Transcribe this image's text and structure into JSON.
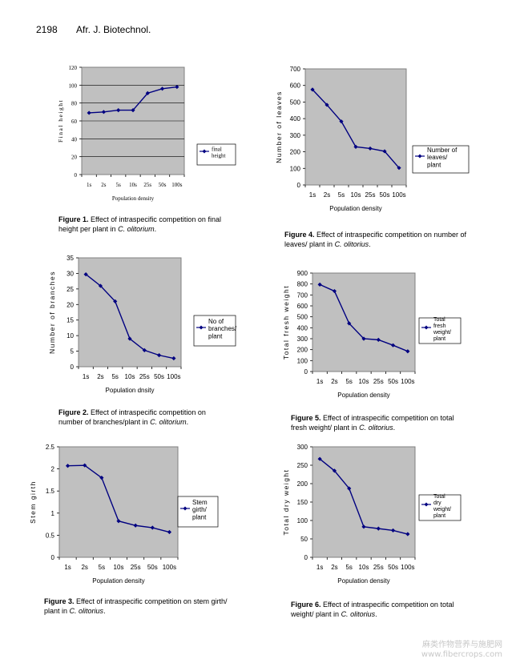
{
  "header": {
    "page_number": "2198",
    "journal": "Afr. J. Biotechnol."
  },
  "figures": [
    {
      "caption": {
        "label": "Figure 1.",
        "text": "Effect of intraspecific competition on final height per plant in",
        "species": "C. olitorium",
        "end": "."
      },
      "chart_data": {
        "type": "line",
        "categories": [
          "1s",
          "2s",
          "5s",
          "10s",
          "25s",
          "50s",
          "100s"
        ],
        "series": [
          {
            "name": "final height",
            "values": [
              69,
              70,
              72,
              72,
              91,
              96,
              98
            ]
          }
        ],
        "xlabel": "Population density",
        "ylabel": "Final height",
        "ylim": [
          0,
          120
        ],
        "yticks": [
          "0",
          "20",
          "40",
          "60",
          "80",
          "100",
          "120"
        ],
        "grid": true,
        "legend": "right"
      }
    },
    {
      "caption": {
        "label": "Figure 2.",
        "text": "Effect of intraspecific competition on number of branches/plant in",
        "species": "C. olitorium",
        "end": "."
      },
      "chart_data": {
        "type": "line",
        "categories": [
          "1s",
          "2s",
          "5s",
          "10s",
          "25s",
          "50s",
          "100s"
        ],
        "series": [
          {
            "name": "No of branches/ plant",
            "values": [
              29.7,
              26,
              21,
              9,
              5.3,
              3.7,
              2.7
            ]
          }
        ],
        "xlabel": "Population dnsity",
        "ylabel": "Number of branches",
        "ylim": [
          0,
          35
        ],
        "yticks": [
          "0",
          "5",
          "10",
          "15",
          "20",
          "25",
          "30",
          "35"
        ],
        "grid": false,
        "legend": "right"
      }
    },
    {
      "caption": {
        "label": "Figure 3.",
        "text": "Effect of intraspecific competition on stem girth/ plant in",
        "species": "C. olitorius",
        "end": "."
      },
      "chart_data": {
        "type": "line",
        "categories": [
          "1s",
          "2s",
          "5s",
          "10s",
          "25s",
          "50s",
          "100s"
        ],
        "series": [
          {
            "name": "Stem girth/ plant",
            "values": [
              2.07,
              2.08,
              1.8,
              0.82,
              0.72,
              0.67,
              0.57
            ]
          }
        ],
        "xlabel": "Population density",
        "ylabel": "Stem girth",
        "ylim": [
          0,
          2.5
        ],
        "yticks": [
          "0",
          "0.5",
          "1",
          "1.5",
          "2",
          "2.5"
        ],
        "grid": false,
        "legend": "right"
      }
    },
    {
      "caption": {
        "label": "Figure 4.",
        "text": "Effect of intraspecific competition on number of leaves/ plant in",
        "species": "C. olitorius",
        "end": "."
      },
      "chart_data": {
        "type": "line",
        "categories": [
          "1s",
          "2s",
          "5s",
          "10s",
          "25s",
          "50s",
          "100s"
        ],
        "series": [
          {
            "name": "Number of leaves/ plant",
            "values": [
              575,
              483,
              383,
              230,
              220,
              203,
              103
            ]
          }
        ],
        "xlabel": "Population density",
        "ylabel": "Number of leaves",
        "ylim": [
          0,
          700
        ],
        "yticks": [
          "0",
          "100",
          "200",
          "300",
          "400",
          "500",
          "600",
          "700"
        ],
        "grid": false,
        "legend": "right"
      }
    },
    {
      "caption": {
        "label": "Figure 5.",
        "text": "Effect of intraspecific competition on total fresh weight/ plant in",
        "species": "C. olitorius",
        "end": "."
      },
      "chart_data": {
        "type": "line",
        "categories": [
          "1s",
          "2s",
          "5s",
          "10s",
          "25s",
          "50s",
          "100s"
        ],
        "series": [
          {
            "name": "Total fresh weight/ plant",
            "values": [
              795,
              735,
              440,
              300,
              290,
              240,
              185
            ]
          }
        ],
        "xlabel": "Population density",
        "ylabel": "Total fresh weight",
        "ylim": [
          0,
          900
        ],
        "yticks": [
          "0",
          "100",
          "200",
          "300",
          "400",
          "500",
          "600",
          "700",
          "800",
          "900"
        ],
        "grid": false,
        "legend": "right"
      }
    },
    {
      "caption": {
        "label": "Figure 6.",
        "text": "Effect of intraspecific competition on total weight/ plant in",
        "species": "C. olitorius",
        "end": "."
      },
      "chart_data": {
        "type": "line",
        "categories": [
          "1s",
          "2s",
          "5s",
          "10s",
          "25s",
          "50s",
          "100s"
        ],
        "series": [
          {
            "name": "Total dry weight/ plant",
            "values": [
              267,
              235,
              187,
              83,
              78,
              73,
              63
            ]
          }
        ],
        "xlabel": "Population density",
        "ylabel": "Total dry weight",
        "ylim": [
          0,
          300
        ],
        "yticks": [
          "0",
          "50",
          "100",
          "150",
          "200",
          "250",
          "300"
        ],
        "grid": false,
        "legend": "right"
      }
    }
  ],
  "watermark": {
    "line1": "麻类作物营养与施肥网",
    "line2": "www.fibercrops.com"
  },
  "colors": {
    "plot_bg": "#c0c0c0",
    "line": "#000080",
    "axis": "#808080"
  }
}
